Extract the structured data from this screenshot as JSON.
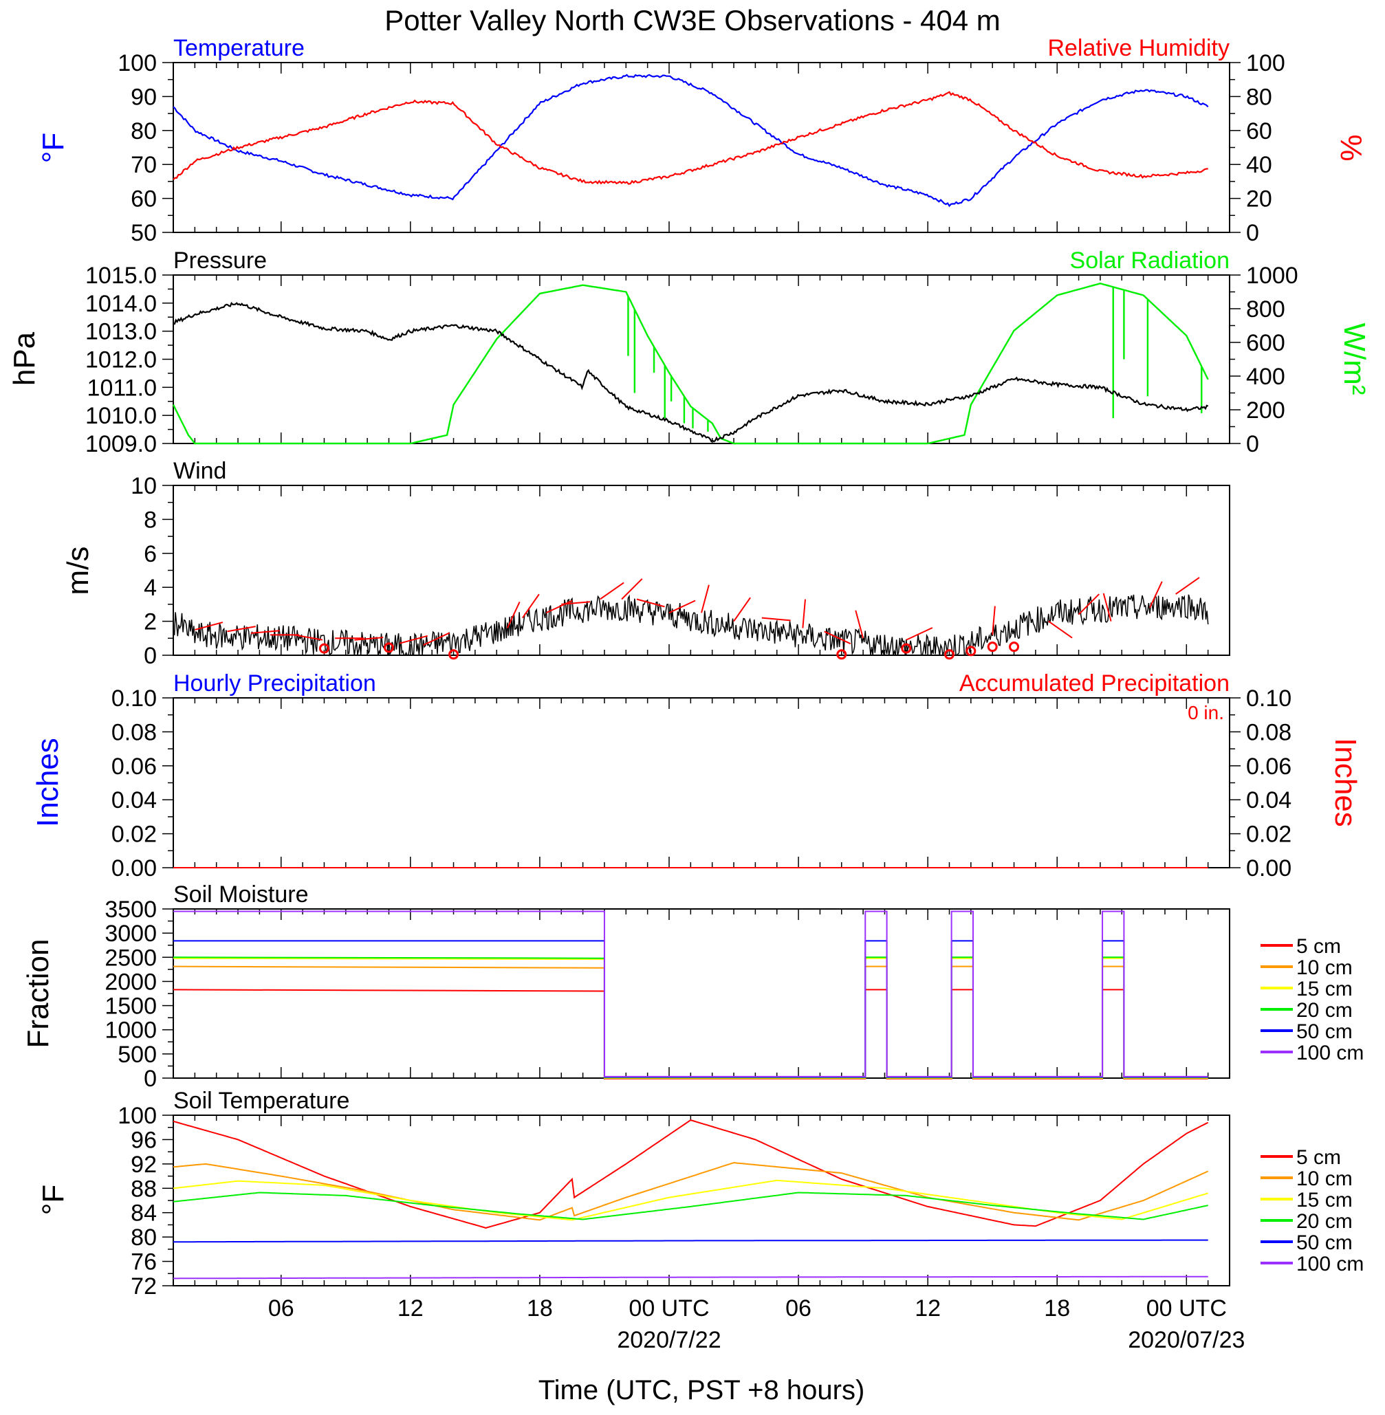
{
  "title": "Potter Valley North CW3E Observations - 404 m",
  "xaxis": {
    "label": "Time (UTC, PST +8 hours)",
    "tick_labels": [
      "06",
      "12",
      "18",
      "00 UTC",
      "06",
      "12",
      "18",
      "00 UTC"
    ],
    "tick_hours": [
      6,
      12,
      18,
      24,
      30,
      36,
      42,
      48
    ],
    "date_labels": [
      "2020/7/22",
      "2020/07/23"
    ],
    "date_label_hours": [
      24,
      48
    ],
    "range_hours": [
      1,
      50
    ]
  },
  "panels": {
    "temp_rh": {
      "title_left": "Temperature",
      "title_right": "Relative Humidity",
      "ylabel_left": "°F",
      "ylabel_right": "%",
      "left_ticks": [
        "50",
        "60",
        "70",
        "80",
        "90",
        "100"
      ],
      "right_ticks": [
        "0",
        "20",
        "40",
        "60",
        "80",
        "100"
      ]
    },
    "pressure_solar": {
      "title_left": "Pressure",
      "title_right": "Solar Radiation",
      "ylabel_left": "hPa",
      "ylabel_right": "W/m²",
      "left_ticks": [
        "1009.0",
        "1010.0",
        "1011.0",
        "1012.0",
        "1013.0",
        "1014.0",
        "1015.0"
      ],
      "right_ticks": [
        "0",
        "200",
        "400",
        "600",
        "800",
        "1000"
      ]
    },
    "wind": {
      "title_left": "Wind",
      "ylabel_left": "m/s",
      "left_ticks": [
        "0",
        "2",
        "4",
        "6",
        "8",
        "10"
      ]
    },
    "precip": {
      "title_left": "Hourly Precipitation",
      "title_right": "Accumulated Precipitation",
      "total": "0 in.",
      "ylabel_left": "Inches",
      "ylabel_right": "Inches",
      "left_ticks": [
        "0.00",
        "0.02",
        "0.04",
        "0.06",
        "0.08",
        "0.10"
      ],
      "right_ticks": [
        "0.00",
        "0.02",
        "0.04",
        "0.06",
        "0.08",
        "0.10"
      ]
    },
    "soil_moisture": {
      "title_left": "Soil Moisture",
      "ylabel_left": "Fraction",
      "left_ticks": [
        "0",
        "500",
        "1000",
        "1500",
        "2000",
        "2500",
        "3000",
        "3500"
      ]
    },
    "soil_temp": {
      "title_left": "Soil Temperature",
      "ylabel_left": "°F",
      "left_ticks": [
        "72",
        "76",
        "80",
        "84",
        "88",
        "92",
        "96",
        "100"
      ]
    }
  },
  "legend_depths": [
    "5 cm",
    "10 cm",
    "15 cm",
    "20 cm",
    "50 cm",
    "100 cm"
  ],
  "colors": {
    "temperature": "#0000ff",
    "humidity": "#ff0000",
    "pressure": "#000000",
    "solar": "#00ee00",
    "wind": "#000000",
    "barb": "#ff0000",
    "depths": [
      "#ff0000",
      "#ff9900",
      "#ffff00",
      "#00ee00",
      "#0000ff",
      "#9b30ff"
    ]
  },
  "chart_data": [
    {
      "type": "line",
      "title": "Temperature",
      "x_unit": "hours since 2020-07-21 00 UTC",
      "ylabel": "°F",
      "ylim": [
        50,
        100
      ],
      "series": [
        {
          "name": "Temperature",
          "x": [
            1,
            2,
            4,
            6,
            8,
            10,
            12,
            14,
            16,
            18,
            20,
            22,
            24,
            26,
            28,
            30,
            32,
            34,
            36,
            37,
            38,
            40,
            42,
            44,
            46,
            48,
            49
          ],
          "values": [
            87,
            80,
            74,
            71,
            67,
            64,
            61,
            60,
            74,
            88,
            94,
            96,
            96,
            91,
            82,
            73,
            69,
            64,
            61,
            58,
            60,
            72,
            82,
            89,
            92,
            90,
            87
          ]
        }
      ]
    },
    {
      "type": "line",
      "title": "Relative Humidity",
      "x_unit": "hours since 2020-07-21 00 UTC",
      "ylabel": "%",
      "ylim": [
        0,
        100
      ],
      "series": [
        {
          "name": "Relative Humidity",
          "x": [
            1,
            2,
            4,
            6,
            8,
            10,
            12,
            14,
            16,
            18,
            20,
            22,
            24,
            26,
            28,
            30,
            32,
            34,
            36,
            37,
            38,
            40,
            42,
            44,
            46,
            48,
            49
          ],
          "values": [
            31,
            42,
            50,
            56,
            62,
            70,
            77,
            76,
            52,
            38,
            30,
            29,
            33,
            40,
            47,
            56,
            64,
            72,
            78,
            82,
            78,
            60,
            45,
            36,
            33,
            35,
            37
          ]
        }
      ]
    },
    {
      "type": "line",
      "title": "Pressure",
      "x_unit": "hours since 2020-07-21 00 UTC",
      "ylabel": "hPa",
      "ylim": [
        1009,
        1015
      ],
      "series": [
        {
          "name": "Pressure",
          "x": [
            1,
            2,
            4,
            6,
            8,
            10,
            11,
            12,
            14,
            16,
            18,
            20,
            20.2,
            22,
            24,
            26,
            27,
            28,
            30,
            32,
            34,
            36,
            38,
            40,
            42,
            44,
            46,
            48,
            49
          ],
          "values": [
            1013.3,
            1013.6,
            1014.0,
            1013.5,
            1013.1,
            1013.0,
            1012.7,
            1013.0,
            1013.2,
            1013.0,
            1012.0,
            1011.0,
            1011.6,
            1010.3,
            1009.8,
            1009.1,
            1009.4,
            1009.9,
            1010.7,
            1010.9,
            1010.5,
            1010.4,
            1010.7,
            1011.3,
            1011.1,
            1011.0,
            1010.4,
            1010.2,
            1010.3
          ]
        }
      ]
    },
    {
      "type": "line",
      "title": "Solar Radiation",
      "x_unit": "hours since 2020-07-21 00 UTC",
      "ylabel": "W/m²",
      "ylim": [
        0,
        1000
      ],
      "series": [
        {
          "name": "Solar Radiation",
          "x": [
            1,
            1.7,
            2,
            12,
            13.7,
            14,
            16,
            18,
            20,
            22,
            23,
            24,
            25,
            26,
            26.4,
            27,
            28,
            36,
            37.7,
            38,
            40,
            42,
            44,
            46,
            48,
            49
          ],
          "values": [
            230,
            50,
            0,
            0,
            50,
            230,
            620,
            890,
            940,
            900,
            640,
            420,
            220,
            120,
            30,
            0,
            0,
            0,
            50,
            230,
            670,
            880,
            950,
            880,
            640,
            380
          ]
        }
      ]
    },
    {
      "type": "line",
      "title": "Wind",
      "x_unit": "hours since 2020-07-21 00 UTC",
      "ylabel": "m/s",
      "ylim": [
        0,
        10
      ],
      "series": [
        {
          "name": "Wind speed",
          "x": [
            1,
            2,
            4,
            6,
            8,
            10,
            12,
            14,
            16,
            18,
            20,
            22,
            24,
            26,
            28,
            30,
            32,
            34,
            36,
            38,
            40,
            42,
            44,
            46,
            48,
            49
          ],
          "values": [
            2.0,
            1.2,
            1.1,
            1.0,
            0.8,
            0.6,
            0.5,
            0.8,
            1.4,
            2.2,
            2.7,
            2.8,
            2.4,
            1.9,
            1.5,
            1.2,
            0.8,
            0.6,
            0.4,
            0.7,
            1.6,
            2.5,
            2.7,
            2.8,
            3.0,
            2.5
          ]
        }
      ]
    },
    {
      "type": "line",
      "title": "Hourly Precipitation",
      "x_unit": "hours since 2020-07-21 00 UTC",
      "ylabel": "Inches",
      "ylim": [
        0,
        0.1
      ],
      "series": [
        {
          "name": "Hourly Precipitation",
          "x": [
            1,
            49
          ],
          "values": [
            0,
            0
          ]
        },
        {
          "name": "Accumulated Precipitation",
          "x": [
            1,
            49
          ],
          "values": [
            0,
            0
          ]
        }
      ]
    },
    {
      "type": "line",
      "title": "Soil Moisture",
      "x_unit": "hours since 2020-07-21 00 UTC",
      "ylabel": "Fraction",
      "ylim": [
        0,
        3500
      ],
      "segments_valid": [
        [
          1,
          21
        ],
        [
          33.1,
          34.1
        ],
        [
          37.1,
          38.1
        ],
        [
          44.1,
          45.1
        ]
      ],
      "missing_value": 30,
      "series": [
        {
          "name": "5 cm",
          "values": [
            1830,
            1800
          ]
        },
        {
          "name": "10 cm",
          "values": [
            2310,
            2280
          ]
        },
        {
          "name": "15 cm",
          "values": [
            2480,
            2460
          ]
        },
        {
          "name": "20 cm",
          "values": [
            2500,
            2480
          ]
        },
        {
          "name": "50 cm",
          "values": [
            2840,
            2840
          ]
        },
        {
          "name": "100 cm",
          "values": [
            3450,
            3450
          ]
        }
      ]
    },
    {
      "type": "line",
      "title": "Soil Temperature",
      "x_unit": "hours since 2020-07-21 00 UTC",
      "ylabel": "°F",
      "ylim": [
        72,
        100
      ],
      "series": [
        {
          "name": "5 cm",
          "x": [
            1,
            4,
            8,
            12,
            15.5,
            18,
            19.5,
            19.6,
            22,
            25,
            28,
            32,
            36,
            40,
            41,
            44,
            46,
            48,
            49
          ],
          "values": [
            99,
            96,
            90,
            85,
            81.5,
            84,
            89.5,
            86.5,
            92,
            99.2,
            96,
            89.5,
            85,
            82,
            81.8,
            86,
            92,
            97,
            98.8
          ]
        },
        {
          "name": "10 cm",
          "x": [
            1,
            2.5,
            6,
            10,
            14,
            18,
            19.5,
            19.6,
            22,
            27,
            32,
            36,
            40,
            43,
            46,
            49
          ],
          "values": [
            91.5,
            92,
            90,
            87.5,
            84.5,
            82.8,
            84.8,
            83.5,
            86.5,
            92.2,
            90.5,
            86.5,
            84,
            82.8,
            86,
            90.8
          ]
        },
        {
          "name": "15 cm",
          "x": [
            1,
            4,
            8,
            12,
            16,
            19.5,
            24,
            29,
            34,
            38,
            42,
            45,
            49
          ],
          "values": [
            88,
            89.2,
            88.5,
            86,
            84,
            82.8,
            86.5,
            89.3,
            88,
            86,
            84,
            82.9,
            87.2
          ]
        },
        {
          "name": "20 cm",
          "x": [
            1,
            5,
            9,
            13,
            17,
            20,
            25,
            30,
            35,
            39,
            43,
            46,
            49
          ],
          "values": [
            85.8,
            87.3,
            86.8,
            85.2,
            83.8,
            82.9,
            85,
            87.3,
            86.8,
            85.2,
            83.8,
            82.9,
            85.2
          ]
        },
        {
          "name": "50 cm",
          "x": [
            1,
            25,
            49
          ],
          "values": [
            79.2,
            79.4,
            79.5
          ]
        },
        {
          "name": "100 cm",
          "x": [
            1,
            25,
            49
          ],
          "values": [
            73.2,
            73.4,
            73.5
          ]
        }
      ]
    }
  ]
}
